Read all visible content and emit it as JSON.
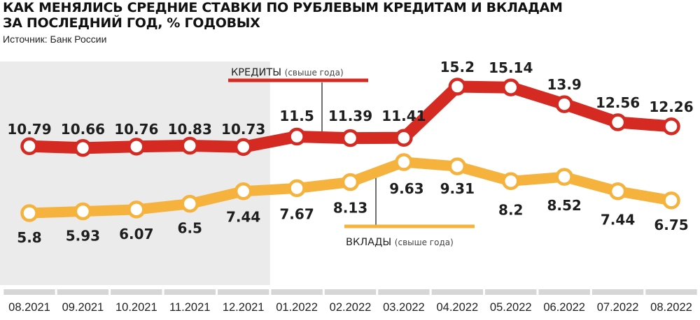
{
  "header": {
    "title_line1": "КАК МЕНЯЛИСЬ СРЕДНИЕ СТАВКИ ПО РУБЛЕВЫМ КРЕДИТАМ И ВКЛАДАМ",
    "title_line2": "ЗА ПОСЛЕДНИЙ ГОД, % ГОДОВЫХ",
    "source": "Источник: Банк России"
  },
  "colors": {
    "credits": "#d42a22",
    "deposits": "#f5b23c",
    "shade": "#ebebeb",
    "axis_bar": "#d6d6d6"
  },
  "chart_data": {
    "type": "line",
    "title": "КАК МЕНЯЛИСЬ СРЕДНИЕ СТАВКИ ПО РУБЛЕВЫМ КРЕДИТАМ И ВКЛАДАМ ЗА ПОСЛЕДНИЙ ГОД, % ГОДОВЫХ",
    "categories": [
      "08.2021",
      "09.2021",
      "10.2021",
      "11.2021",
      "12.2021",
      "01.2022",
      "02.2022",
      "03.2022",
      "04.2022",
      "05.2022",
      "06.2022",
      "07.2022",
      "08.2022"
    ],
    "series": [
      {
        "name": "КРЕДИТЫ",
        "name_suffix": "(свыше года)",
        "values": [
          10.79,
          10.66,
          10.76,
          10.83,
          10.73,
          11.5,
          11.39,
          11.41,
          15.2,
          15.14,
          13.9,
          12.56,
          12.26
        ],
        "labels": [
          "10.79",
          "10.66",
          "10.76",
          "10.83",
          "10.73",
          "11.5",
          "11.39",
          "11.41",
          "15.2",
          "15.14",
          "13.9",
          "12.56",
          "12.26"
        ]
      },
      {
        "name": "ВКЛАДЫ",
        "name_suffix": "(свыше года)",
        "values": [
          5.8,
          5.93,
          6.07,
          6.5,
          7.44,
          7.67,
          8.13,
          9.63,
          9.31,
          8.2,
          8.52,
          7.44,
          6.75
        ],
        "labels": [
          "5.8",
          "5.93",
          "6.07",
          "6.5",
          "7.44",
          "7.67",
          "8.13",
          "9.63",
          "9.31",
          "8.2",
          "8.52",
          "7.44",
          "6.75"
        ]
      }
    ],
    "shaded_period": [
      "08.2021",
      "12.2021"
    ],
    "grid": false,
    "legend": "inline callouts"
  }
}
